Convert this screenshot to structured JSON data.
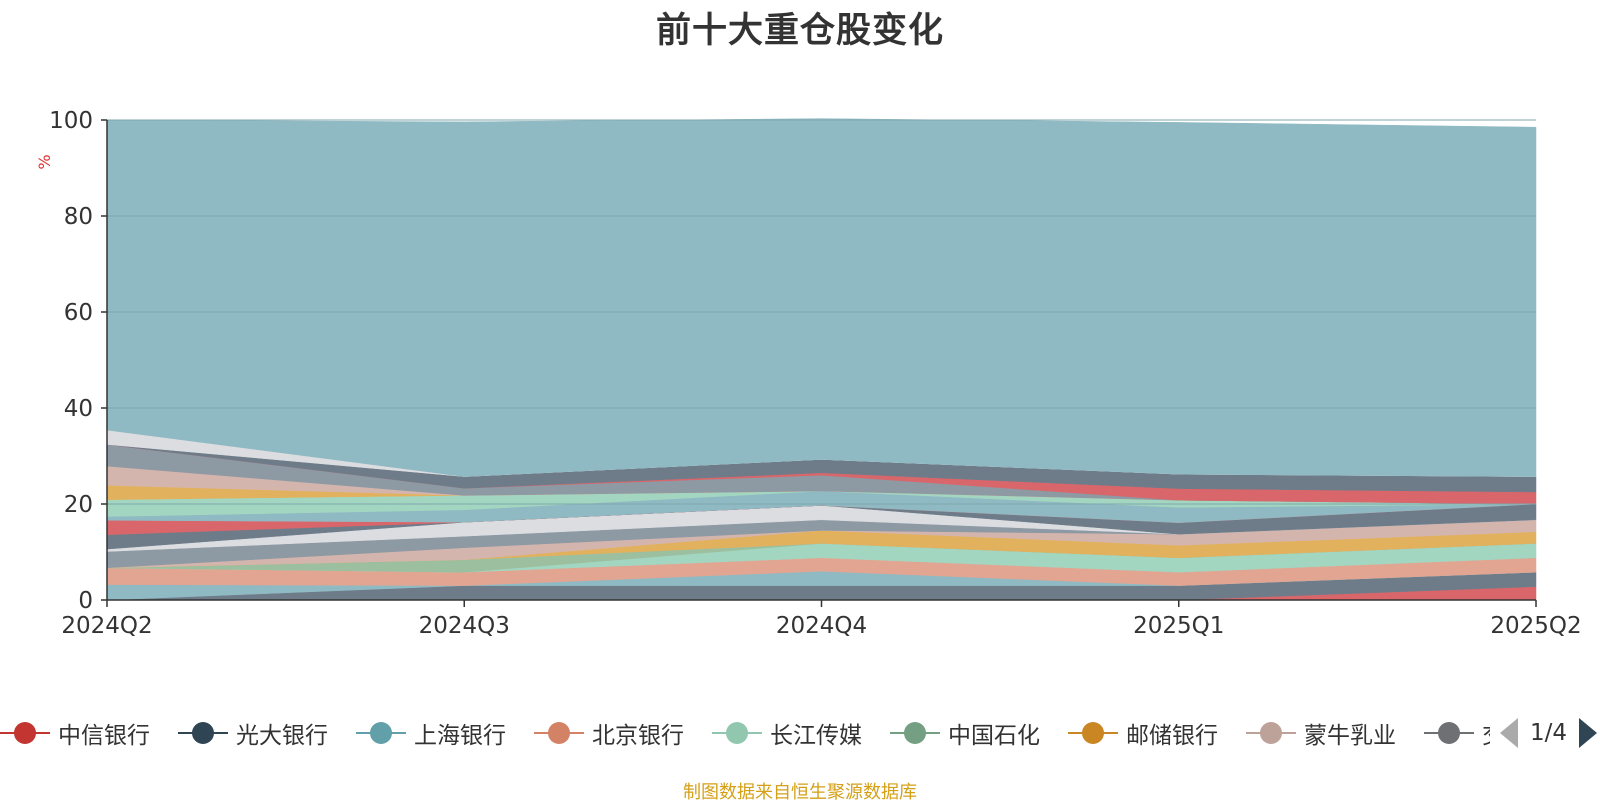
{
  "chart_data": {
    "type": "area",
    "stacked": true,
    "title": "前十大重仓股变化",
    "ylabel": "%",
    "ylim": [
      0,
      100
    ],
    "yticks": [
      0,
      20,
      40,
      60,
      80,
      100
    ],
    "categories": [
      "2024Q2",
      "2024Q3",
      "2024Q4",
      "2025Q1",
      "2025Q2"
    ],
    "grid": true,
    "legend_position": "bottom",
    "legend_page": "1/4",
    "series": [
      {
        "name": "",
        "color": "#d9666a",
        "values": [
          0,
          0,
          0,
          0,
          2.8
        ]
      },
      {
        "name": "",
        "color": "#6e7c8a",
        "values": [
          0,
          3.0,
          3.0,
          3.0,
          3.0
        ]
      },
      {
        "name": "",
        "color": "#8fbac3",
        "values": [
          3.2,
          0,
          3.0,
          0,
          0
        ]
      },
      {
        "name": "",
        "color": "#e1a592",
        "values": [
          3.5,
          2.8,
          2.8,
          2.8,
          3.0
        ]
      },
      {
        "name": "",
        "color": "#a3d6c0",
        "values": [
          0,
          0,
          3.0,
          3.0,
          3.0
        ]
      },
      {
        "name": "",
        "color": "#9bbf9f",
        "values": [
          0,
          2.6,
          0,
          0,
          0
        ]
      },
      {
        "name": "",
        "color": "#e2b15e",
        "values": [
          0,
          0,
          2.7,
          2.6,
          2.4
        ]
      },
      {
        "name": "",
        "color": "#d4b5ad",
        "values": [
          0,
          2.5,
          0,
          2.3,
          2.5
        ]
      },
      {
        "name": "",
        "color": "#8d99a3",
        "values": [
          3.4,
          2.4,
          2.2,
          0,
          0
        ]
      },
      {
        "name": "",
        "color": "#dcdde1",
        "values": [
          0.5,
          2.9,
          3.0,
          0,
          0
        ]
      },
      {
        "name": "",
        "color": "#6e7c8a",
        "values": [
          3.0,
          0,
          0,
          2.4,
          3.3
        ]
      },
      {
        "name": "",
        "color": "#d9666a",
        "values": [
          3.0,
          0,
          0,
          0,
          0
        ]
      },
      {
        "name": "",
        "color": "#8fbac3",
        "values": [
          0.8,
          2.6,
          3.0,
          3.2,
          0
        ]
      },
      {
        "name": "",
        "color": "#a3d6c0",
        "values": [
          3.5,
          3.0,
          0,
          1.5,
          0
        ]
      },
      {
        "name": "",
        "color": "#e2b15e",
        "values": [
          3.0,
          0,
          0,
          0,
          0
        ]
      },
      {
        "name": "",
        "color": "#d4b5ad",
        "values": [
          4.0,
          0,
          0,
          0,
          0
        ]
      },
      {
        "name": "",
        "color": "#8d99a3",
        "values": [
          4.5,
          1.5,
          3.3,
          0,
          0
        ]
      },
      {
        "name": "",
        "color": "#d9666a",
        "values": [
          0,
          0,
          0.5,
          2.4,
          2.5
        ]
      },
      {
        "name": "",
        "color": "#6e7c8a",
        "values": [
          0,
          2.4,
          2.8,
          3.0,
          3.2
        ]
      },
      {
        "name": "",
        "color": "#dcdde1",
        "values": [
          3.0,
          0,
          0,
          0,
          0
        ]
      },
      {
        "name": "",
        "color": "#8fbac3",
        "values": [
          64.6,
          73.9,
          71.0,
          73.3,
          72.8
        ]
      }
    ]
  },
  "legend": {
    "items": [
      {
        "label": "中信银行",
        "color": "#c23531"
      },
      {
        "label": "光大银行",
        "color": "#2f4554"
      },
      {
        "label": "上海银行",
        "color": "#61a0a8"
      },
      {
        "label": "北京银行",
        "color": "#d48265"
      },
      {
        "label": "长江传媒",
        "color": "#91c7ae"
      },
      {
        "label": "中国石化",
        "color": "#749f83"
      },
      {
        "label": "邮储银行",
        "color": "#ca8622"
      },
      {
        "label": "蒙牛乳业",
        "color": "#bda29a"
      },
      {
        "label": "交",
        "color": "#6e7074"
      }
    ],
    "page": "1/4"
  },
  "source_text": "制图数据来自恒生聚源数据库"
}
